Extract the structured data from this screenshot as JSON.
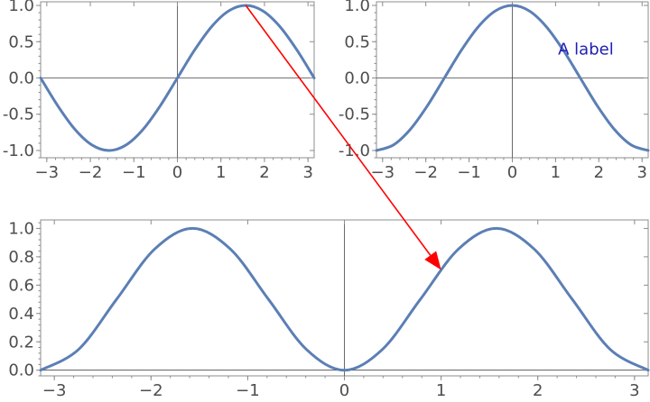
{
  "colors": {
    "series": "#5b7fb5",
    "arrow": "#ff0000",
    "label": "#1f1fb4"
  },
  "chart_data": [
    {
      "type": "line",
      "function": "sin(x)",
      "xlim": [
        -3.1416,
        3.1416
      ],
      "ylim": [
        -1.1,
        1.05
      ],
      "x_ticks": [
        -3,
        -2,
        -1,
        0,
        1,
        2,
        3
      ],
      "x_tick_labels": [
        "−3",
        "−2",
        "−1",
        "0",
        "1",
        "2",
        "3"
      ],
      "y_ticks": [
        -1.0,
        -0.5,
        0.0,
        0.5,
        1.0
      ],
      "y_tick_labels": [
        "-1.0",
        "-0.5",
        "0.0",
        "0.5",
        "1.0"
      ],
      "series": [
        {
          "values": [
            [
              -3.1416,
              0.0
            ],
            [
              -2.7489,
              -0.3827
            ],
            [
              -2.3562,
              -0.7071
            ],
            [
              -1.9635,
              -0.9239
            ],
            [
              -1.5708,
              -1.0
            ],
            [
              -1.1781,
              -0.9239
            ],
            [
              -0.7854,
              -0.7071
            ],
            [
              -0.3927,
              -0.3827
            ],
            [
              0.0,
              0.0
            ],
            [
              0.3927,
              0.3827
            ],
            [
              0.7854,
              0.7071
            ],
            [
              1.1781,
              0.9239
            ],
            [
              1.5708,
              1.0
            ],
            [
              1.9635,
              0.9239
            ],
            [
              2.3562,
              0.7071
            ],
            [
              2.7489,
              0.3827
            ],
            [
              3.1416,
              0.0
            ]
          ]
        }
      ]
    },
    {
      "type": "line",
      "function": "cos(x)",
      "xlim": [
        -3.1416,
        3.1416
      ],
      "ylim": [
        -1.1,
        1.05
      ],
      "x_ticks": [
        -3,
        -2,
        -1,
        0,
        1,
        2,
        3
      ],
      "x_tick_labels": [
        "−3",
        "−2",
        "−1",
        "0",
        "1",
        "2",
        "3"
      ],
      "y_ticks": [
        -1.0,
        -0.5,
        0.0,
        0.5,
        1.0
      ],
      "y_tick_labels": [
        "-1.0",
        "-0.5",
        "0.0",
        "0.5",
        "1.0"
      ],
      "annotations": [
        {
          "text": "A label",
          "x": 1.7,
          "y": 0.4
        }
      ],
      "series": [
        {
          "values": [
            [
              -3.1416,
              -1.0
            ],
            [
              -2.7489,
              -0.9239
            ],
            [
              -2.3562,
              -0.7071
            ],
            [
              -1.9635,
              -0.3827
            ],
            [
              -1.5708,
              0.0
            ],
            [
              -1.1781,
              0.3827
            ],
            [
              -0.7854,
              0.7071
            ],
            [
              -0.3927,
              0.9239
            ],
            [
              0.0,
              1.0
            ],
            [
              0.3927,
              0.9239
            ],
            [
              0.7854,
              0.7071
            ],
            [
              1.1781,
              0.3827
            ],
            [
              1.5708,
              0.0
            ],
            [
              1.9635,
              -0.3827
            ],
            [
              2.3562,
              -0.7071
            ],
            [
              2.7489,
              -0.9239
            ],
            [
              3.1416,
              -1.0
            ]
          ]
        }
      ]
    },
    {
      "type": "line",
      "function": "sin(x)^2",
      "xlim": [
        -3.1416,
        3.1416
      ],
      "ylim": [
        -0.04,
        1.06
      ],
      "x_ticks": [
        -3,
        -2,
        -1,
        0,
        1,
        2,
        3
      ],
      "x_tick_labels": [
        "−3",
        "−2",
        "−1",
        "0",
        "1",
        "2",
        "3"
      ],
      "y_ticks": [
        0.0,
        0.2,
        0.4,
        0.6,
        0.8,
        1.0
      ],
      "y_tick_labels": [
        "0.0",
        "0.2",
        "0.4",
        "0.6",
        "0.8",
        "1.0"
      ],
      "series": [
        {
          "values": [
            [
              -3.1416,
              0.0
            ],
            [
              -2.7489,
              0.1464
            ],
            [
              -2.3562,
              0.5
            ],
            [
              -1.9635,
              0.8536
            ],
            [
              -1.5708,
              1.0
            ],
            [
              -1.1781,
              0.8536
            ],
            [
              -0.7854,
              0.5
            ],
            [
              -0.3927,
              0.1464
            ],
            [
              0.0,
              0.0
            ],
            [
              0.3927,
              0.1464
            ],
            [
              0.7854,
              0.5
            ],
            [
              1.1781,
              0.8536
            ],
            [
              1.5708,
              1.0
            ],
            [
              1.9635,
              0.8536
            ],
            [
              2.3562,
              0.5
            ],
            [
              2.7489,
              0.1464
            ],
            [
              3.1416,
              0.0
            ]
          ]
        }
      ]
    }
  ],
  "arrow": {
    "from": {
      "panel": 0,
      "x": 1.5708,
      "y": 1.0
    },
    "to": {
      "panel": 2,
      "x": 1.0,
      "y": 0.708
    }
  }
}
